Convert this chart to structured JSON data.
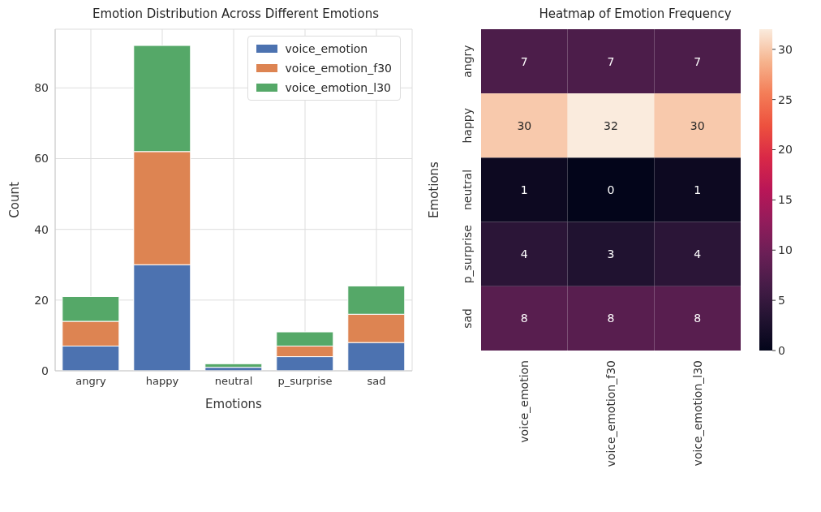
{
  "chart_data": [
    {
      "type": "bar",
      "title": "Emotion Distribution Across Different Emotions",
      "xlabel": "Emotions",
      "ylabel": "Count",
      "categories": [
        "angry",
        "happy",
        "neutral",
        "p_surprise",
        "sad"
      ],
      "stacked": true,
      "series": [
        {
          "name": "voice_emotion",
          "color": "#4c72b0",
          "values": [
            7,
            30,
            1,
            4,
            8
          ]
        },
        {
          "name": "voice_emotion_f30",
          "color": "#dd8452",
          "values": [
            7,
            32,
            0,
            3,
            8
          ]
        },
        {
          "name": "voice_emotion_l30",
          "color": "#55a868",
          "values": [
            7,
            30,
            1,
            4,
            8
          ]
        }
      ],
      "ylim": [
        0,
        96.6
      ],
      "yticks": [
        0,
        20,
        40,
        60,
        80
      ],
      "grid": true,
      "legend": "top right"
    },
    {
      "type": "heatmap",
      "title": "Heatmap of Emotion Frequency",
      "ylabel": "Emotions",
      "categories": [
        "voice_emotion",
        "voice_emotion_f30",
        "voice_emotion_l30"
      ],
      "y_categories": [
        "angry",
        "happy",
        "neutral",
        "p_surprise",
        "sad"
      ],
      "cells": [
        [
          7,
          7,
          7
        ],
        [
          30,
          32,
          30
        ],
        [
          1,
          0,
          1
        ],
        [
          4,
          3,
          4
        ],
        [
          8,
          8,
          8
        ]
      ],
      "clim": [
        0,
        32
      ],
      "cticks": [
        0,
        5,
        10,
        15,
        20,
        25,
        30
      ],
      "data_labels": true
    }
  ]
}
